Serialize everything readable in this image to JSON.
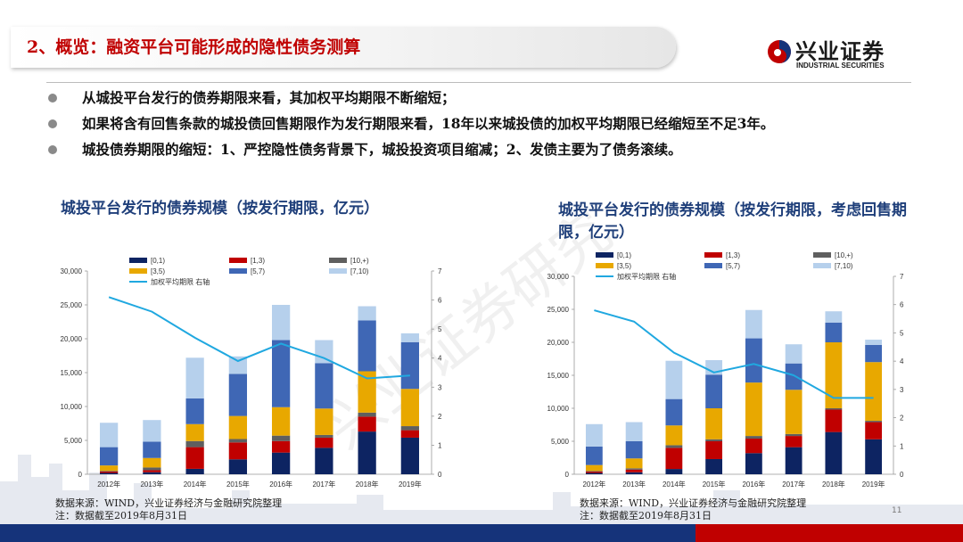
{
  "header": {
    "title": "2、概览：融资平台可能形成的隐性债务测算"
  },
  "logo": {
    "name": "兴业证券",
    "sub": "INDUSTRIAL SECURITIES"
  },
  "watermark": "兴业证券研究",
  "bullets": [
    "从城投平台发行的债券期限来看，其加权平均期限不断缩短；",
    "如果将含有回售条款的城投债回售期限作为发行期限来看，18年以来城投债的加权平均期限已经缩短至不足3年。",
    "城投债券期限的缩短：1、严控隐性债务背景下，城投投资项目缩减；2、发债主要为了债务滚续。"
  ],
  "charts": [
    {
      "title": "城投平台发行的债券规模（按发行期限，亿元）",
      "source": "数据来源：WIND，兴业证券经济与金融研究院整理",
      "note": "注：数据截至2019年8月31日"
    },
    {
      "title": "城投平台发行的债券规模（按发行期限，考虑回售期限，亿元）",
      "source": "数据来源：WIND，兴业证券经济与金融研究院整理",
      "note": "注：数据截至2019年8月31日"
    }
  ],
  "page_number": "11",
  "colors": {
    "s0_1": "#0d2462",
    "s1_3": "#c00000",
    "s10p": "#5f5f5f",
    "s3_5": "#e8a800",
    "s5_7": "#3f67b5",
    "s7_10": "#b6d0ec",
    "line": "#20a8e0",
    "title_red": "#c00000",
    "footer_blue": "#15337a",
    "footer_red": "#c00000"
  },
  "chart_data": [
    {
      "type": "bar",
      "stacked": true,
      "title": "城投平台发行的债券规模（按发行期限，亿元）",
      "categories": [
        "2012年",
        "2013年",
        "2014年",
        "2015年",
        "2016年",
        "2017年",
        "2018年",
        "2019年"
      ],
      "legend": [
        "[0,1)",
        "[1,3)",
        "[10,+)",
        "[3,5)",
        "[5,7)",
        "[7,10)",
        "加权平均期限 右轴"
      ],
      "legend_position": "top",
      "ylim": [
        0,
        30000
      ],
      "yticks": [
        "0",
        "5,000",
        "10,000",
        "15,000",
        "20,000",
        "25,000",
        "30,000"
      ],
      "y2lim": [
        0,
        7
      ],
      "y2ticks": [
        "0",
        "1",
        "2",
        "3",
        "4",
        "5",
        "6",
        "7"
      ],
      "series": [
        {
          "name": "[0,1)",
          "color_key": "s0_1",
          "values": [
            200,
            300,
            800,
            2200,
            3200,
            3900,
            6300,
            5400
          ]
        },
        {
          "name": "[1,3)",
          "color_key": "s1_3",
          "values": [
            200,
            300,
            3200,
            2500,
            1700,
            1500,
            2200,
            1100
          ]
        },
        {
          "name": "[10,+)",
          "color_key": "s10p",
          "values": [
            100,
            400,
            900,
            500,
            800,
            400,
            600,
            600
          ]
        },
        {
          "name": "[3,5)",
          "color_key": "s3_5",
          "values": [
            800,
            1400,
            2500,
            3400,
            4200,
            3900,
            6100,
            5500
          ]
        },
        {
          "name": "[5,7)",
          "color_key": "s5_7",
          "values": [
            2700,
            2400,
            3800,
            6200,
            9900,
            6700,
            7500,
            6900
          ]
        },
        {
          "name": "[7,10)",
          "color_key": "s7_10",
          "values": [
            3600,
            3200,
            6000,
            2600,
            5200,
            3400,
            2100,
            1300
          ]
        }
      ],
      "line": {
        "name": "加权平均期限 右轴",
        "color_key": "line",
        "values": [
          6.1,
          5.6,
          4.7,
          3.9,
          4.5,
          4.0,
          3.3,
          3.4
        ]
      }
    },
    {
      "type": "bar",
      "stacked": true,
      "title": "城投平台发行的债券规模（按发行期限，考虑回售期限，亿元）",
      "categories": [
        "2012年",
        "2013年",
        "2014年",
        "2015年",
        "2016年",
        "2017年",
        "2018年",
        "2019年"
      ],
      "legend": [
        "[0,1)",
        "[1,3)",
        "[10,+)",
        "[3,5)",
        "[5,7)",
        "[7,10)",
        "加权平均期限 右轴"
      ],
      "legend_position": "top",
      "ylim": [
        0,
        30000
      ],
      "yticks": [
        "0",
        "5,000",
        "10,000",
        "15,000",
        "20,000",
        "25,000",
        "30,000"
      ],
      "y2lim": [
        0,
        7
      ],
      "y2ticks": [
        "0",
        "1",
        "2",
        "3",
        "4",
        "5",
        "6",
        "7"
      ],
      "series": [
        {
          "name": "[0,1)",
          "color_key": "s0_1",
          "values": [
            200,
            300,
            800,
            2300,
            3200,
            4100,
            6400,
            5300
          ]
        },
        {
          "name": "[1,3)",
          "color_key": "s1_3",
          "values": [
            200,
            400,
            3200,
            2700,
            2200,
            1700,
            3400,
            2600
          ]
        },
        {
          "name": "[10,+)",
          "color_key": "s10p",
          "values": [
            100,
            200,
            400,
            300,
            400,
            300,
            200,
            200
          ]
        },
        {
          "name": "[3,5)",
          "color_key": "s3_5",
          "values": [
            900,
            1500,
            3000,
            4700,
            8100,
            6700,
            10000,
            8900
          ]
        },
        {
          "name": "[5,7)",
          "color_key": "s5_7",
          "values": [
            2800,
            2600,
            4000,
            5100,
            6700,
            4000,
            3000,
            2600
          ]
        },
        {
          "name": "[7,10)",
          "color_key": "s7_10",
          "values": [
            3400,
            2900,
            5800,
            2200,
            4300,
            2900,
            1700,
            800
          ]
        }
      ],
      "line": {
        "name": "加权平均期限 右轴",
        "color_key": "line",
        "values": [
          5.8,
          5.4,
          4.3,
          3.6,
          3.9,
          3.5,
          2.7,
          2.7
        ]
      }
    }
  ]
}
